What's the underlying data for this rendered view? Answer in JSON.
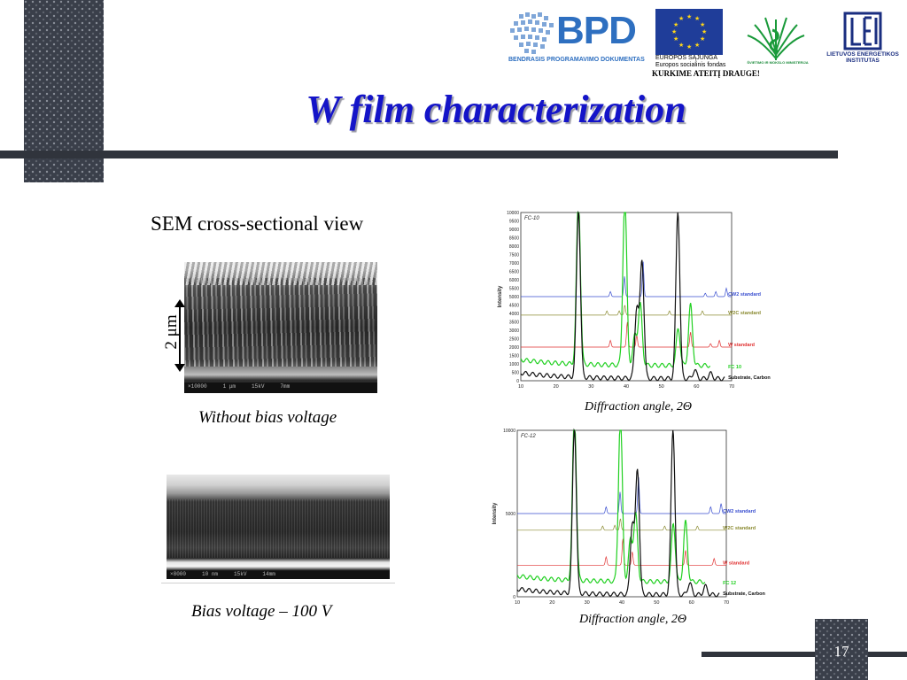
{
  "slide": {
    "title": "W film characterization",
    "page_number": "17"
  },
  "logos": {
    "bpd_name": "BPD",
    "bpd_subtitle": "BENDRASIS PROGRAMAVIMO DOKUMENTAS",
    "eu_line1": "EUROPOS SĄJUNGA",
    "eu_line2": "Europos socialinis fondas",
    "eu_slogan": "KURKIME ATEITĮ DRAUGE!",
    "ministry": "ŠVIETIMO IR MOKSLO MINISTERIJA",
    "lei_line1": "LIETUVOS ENERGETIKOS",
    "lei_line2": "INSTITUTAS"
  },
  "sem": {
    "heading": "SEM cross-sectional view",
    "scale": "2 μm",
    "image1_caption": "Without bias voltage",
    "image2_caption": "Bias voltage – 100 V"
  },
  "diffraction": {
    "caption1": "Diffraction angle, 2Θ",
    "caption2": "Diffraction angle, 2Θ"
  },
  "chart_data": [
    {
      "type": "line",
      "title": "FC-10",
      "ylabel": "Intensity",
      "xlabel": "",
      "xlim": [
        10,
        70
      ],
      "ylim": [
        0,
        10000
      ],
      "x_ticks": [
        10,
        20,
        30,
        40,
        50,
        60,
        70
      ],
      "y_ticks": [
        0,
        500,
        1000,
        1500,
        2000,
        2500,
        3000,
        3500,
        4000,
        4500,
        5000,
        5500,
        6000,
        6500,
        7000,
        7500,
        8000,
        8500,
        9000,
        9500,
        10000
      ],
      "series": [
        {
          "name": "CW2 standard",
          "color": "#3a4fd0",
          "offset": 5000,
          "peaks": [
            [
              35.5,
              300
            ],
            [
              39.5,
              1200
            ],
            [
              44.8,
              2100
            ],
            [
              62.5,
              200
            ],
            [
              65.5,
              300
            ],
            [
              68.5,
              500
            ]
          ]
        },
        {
          "name": "W2C standard",
          "color": "#8a8a30",
          "offset": 3900,
          "peaks": [
            [
              34.5,
              250
            ],
            [
              38.0,
              250
            ],
            [
              39.6,
              600
            ],
            [
              52.3,
              250
            ],
            [
              61.7,
              250
            ]
          ]
        },
        {
          "name": "W standard",
          "color": "#e03030",
          "offset": 2000,
          "peaks": [
            [
              35.5,
              400
            ],
            [
              40.3,
              1500
            ],
            [
              43.0,
              700
            ],
            [
              58.3,
              900
            ],
            [
              64.0,
              200
            ],
            [
              66.5,
              400
            ]
          ]
        },
        {
          "name": "FC 10",
          "color": "#20d020",
          "offset": 0,
          "peaks": [
            [
              26.4,
              10000
            ],
            [
              39.6,
              10000
            ],
            [
              42.5,
              1800
            ],
            [
              44.0,
              3600
            ],
            [
              54.8,
              2200
            ],
            [
              58.3,
              3600
            ]
          ]
        },
        {
          "name": "Substrate, Carbon",
          "color": "#111111",
          "offset": 0,
          "peaks": [
            [
              26.4,
              10000
            ],
            [
              43.0,
              4200
            ],
            [
              44.5,
              7000
            ],
            [
              54.7,
              10000
            ],
            [
              59.5,
              500
            ],
            [
              64.0,
              300
            ]
          ]
        }
      ]
    },
    {
      "type": "line",
      "title": "FC-12",
      "ylabel": "Intensity",
      "xlabel": "",
      "xlim": [
        10,
        70
      ],
      "ylim": [
        0,
        10000
      ],
      "x_ticks": [
        10,
        20,
        30,
        40,
        50,
        60,
        70
      ],
      "y_ticks": [
        0,
        5000,
        10000
      ],
      "series": [
        {
          "name": "CW2 standard",
          "color": "#3a4fd0",
          "offset": 5000,
          "peaks": [
            [
              35.5,
              400
            ],
            [
              39.5,
              1300
            ],
            [
              44.8,
              2200
            ],
            [
              65.5,
              400
            ],
            [
              68.5,
              600
            ]
          ]
        },
        {
          "name": "W2C standard",
          "color": "#8a8a30",
          "offset": 4000,
          "peaks": [
            [
              34.5,
              250
            ],
            [
              38.0,
              300
            ],
            [
              39.6,
              700
            ],
            [
              52.3,
              250
            ],
            [
              61.7,
              250
            ]
          ]
        },
        {
          "name": "W standard",
          "color": "#e03030",
          "offset": 1900,
          "peaks": [
            [
              35.5,
              500
            ],
            [
              40.3,
              1600
            ],
            [
              43.0,
              800
            ],
            [
              58.3,
              900
            ],
            [
              66.5,
              400
            ]
          ]
        },
        {
          "name": "FC 12",
          "color": "#20d020",
          "offset": 0,
          "peaks": [
            [
              26.4,
              10000
            ],
            [
              39.6,
              10000
            ],
            [
              42.5,
              2500
            ],
            [
              44.0,
              4000
            ],
            [
              54.8,
              3500
            ],
            [
              58.3,
              3600
            ]
          ]
        },
        {
          "name": "Substrate, Carbon",
          "color": "#111111",
          "offset": 0,
          "peaks": [
            [
              26.4,
              10000
            ],
            [
              43.0,
              4200
            ],
            [
              44.5,
              7500
            ],
            [
              54.7,
              10000
            ],
            [
              59.5,
              700
            ],
            [
              64.0,
              500
            ]
          ]
        }
      ]
    }
  ]
}
